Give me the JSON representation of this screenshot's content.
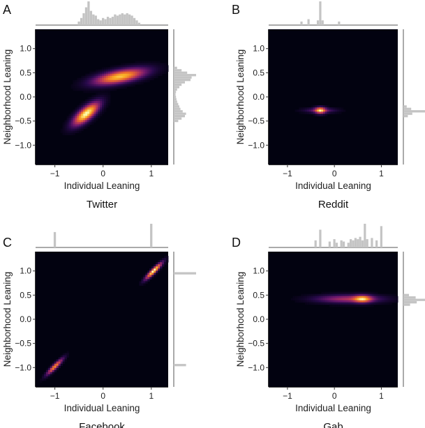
{
  "chart_data": [
    {
      "type": "heatmap",
      "panel_label": "A",
      "title": "Twitter",
      "xlabel": "Individual Leaning",
      "ylabel": "Neighborhood Leaning",
      "xlim": [
        -1.4,
        1.35
      ],
      "ylim": [
        -1.4,
        1.4
      ],
      "xticks": [
        -1,
        0,
        1
      ],
      "yticks": [
        1.0,
        0.5,
        0.0,
        -0.5,
        -1.0
      ],
      "density_peaks": [
        {
          "x": 0.35,
          "y": 0.42,
          "sx": 0.32,
          "sy": 0.1,
          "rho": 0.6,
          "weight": 1.0
        },
        {
          "x": -0.35,
          "y": -0.35,
          "sx": 0.16,
          "sy": 0.14,
          "rho": 0.75,
          "weight": 1.2
        }
      ],
      "x_marginal": {
        "bins": [
          -0.5,
          -0.45,
          -0.4,
          -0.35,
          -0.3,
          -0.25,
          -0.2,
          -0.15,
          -0.1,
          -0.05,
          0,
          0.05,
          0.1,
          0.15,
          0.2,
          0.25,
          0.3,
          0.35,
          0.4,
          0.45,
          0.5,
          0.55,
          0.6,
          0.65,
          0.7,
          0.75
        ],
        "heights": [
          0.15,
          0.3,
          0.5,
          0.75,
          1.0,
          0.6,
          0.45,
          0.4,
          0.25,
          0.2,
          0.3,
          0.25,
          0.35,
          0.3,
          0.35,
          0.45,
          0.4,
          0.45,
          0.5,
          0.45,
          0.5,
          0.45,
          0.4,
          0.3,
          0.2,
          0.1
        ]
      },
      "y_marginal": {
        "bins": [
          -0.5,
          -0.45,
          -0.4,
          -0.35,
          -0.3,
          -0.25,
          -0.2,
          -0.15,
          -0.1,
          -0.05,
          0.0,
          0.05,
          0.1,
          0.15,
          0.2,
          0.25,
          0.3,
          0.35,
          0.4,
          0.45,
          0.5,
          0.55,
          0.6
        ],
        "heights": [
          0.2,
          0.35,
          0.5,
          0.55,
          0.4,
          0.3,
          0.25,
          0.2,
          0.15,
          0.12,
          0.1,
          0.08,
          0.1,
          0.15,
          0.25,
          0.35,
          0.5,
          0.75,
          0.8,
          1.0,
          0.6,
          0.35,
          0.15
        ]
      }
    },
    {
      "type": "heatmap",
      "panel_label": "B",
      "title": "Reddit",
      "xlabel": "Individual Leaning",
      "ylabel": "Neighborhood Leaning",
      "xlim": [
        -1.4,
        1.35
      ],
      "ylim": [
        -1.4,
        1.4
      ],
      "xticks": [
        -1,
        0,
        1
      ],
      "yticks": [
        1.0,
        0.5,
        0.0,
        -0.5,
        -1.0
      ],
      "density_peaks": [
        {
          "x": -0.3,
          "y": -0.28,
          "sx": 0.07,
          "sy": 0.04,
          "rho": 0.0,
          "weight": 1.3
        },
        {
          "x": -0.3,
          "y": -0.28,
          "sx": 0.2,
          "sy": 0.03,
          "rho": 0.0,
          "weight": 0.35
        }
      ],
      "x_marginal": {
        "bins": [
          -0.7,
          -0.55,
          -0.35,
          -0.3,
          -0.25,
          0.1
        ],
        "heights": [
          0.15,
          0.25,
          0.2,
          1.0,
          0.2,
          0.15
        ]
      },
      "y_marginal": {
        "bins": [
          -0.4,
          -0.35,
          -0.3,
          -0.25,
          -0.2
        ],
        "heights": [
          0.2,
          0.4,
          1.0,
          0.35,
          0.15
        ]
      }
    },
    {
      "type": "heatmap",
      "panel_label": "C",
      "title": "Facebook",
      "xlabel": "Individual Leaning",
      "ylabel": "Neighborhood Leaning",
      "xlim": [
        -1.4,
        1.35
      ],
      "ylim": [
        -1.4,
        1.4
      ],
      "xticks": [
        -1,
        0,
        1
      ],
      "yticks": [
        1.0,
        0.5,
        0.0,
        -0.5,
        -1.0
      ],
      "density_peaks": [
        {
          "x": 1.05,
          "y": 1.0,
          "sx": 0.1,
          "sy": 0.1,
          "rho": 0.92,
          "weight": 1.1
        },
        {
          "x": -1.0,
          "y": -0.98,
          "sx": 0.1,
          "sy": 0.1,
          "rho": 0.92,
          "weight": 0.75
        }
      ],
      "x_marginal": {
        "bins": [
          -1.0,
          1.0
        ],
        "heights": [
          0.65,
          1.0
        ]
      },
      "y_marginal": {
        "bins": [
          -0.95,
          0.95
        ],
        "heights": [
          0.55,
          1.0
        ]
      }
    },
    {
      "type": "heatmap",
      "panel_label": "D",
      "title": "Gab",
      "xlabel": "Individual Leaning",
      "ylabel": "Neighborhood Leaning",
      "xlim": [
        -1.4,
        1.35
      ],
      "ylim": [
        -1.4,
        1.4
      ],
      "xticks": [
        -1,
        0,
        1
      ],
      "yticks": [
        1.0,
        0.5,
        0.0,
        -0.5,
        -1.0
      ],
      "density_peaks": [
        {
          "x": 0.6,
          "y": 0.42,
          "sx": 0.12,
          "sy": 0.045,
          "rho": 0.0,
          "weight": 1.2
        },
        {
          "x": 0.3,
          "y": 0.42,
          "sx": 0.42,
          "sy": 0.05,
          "rho": 0.0,
          "weight": 0.6
        }
      ],
      "x_marginal": {
        "bins": [
          -0.4,
          -0.3,
          -0.1,
          0.0,
          0.05,
          0.15,
          0.2,
          0.3,
          0.35,
          0.4,
          0.45,
          0.5,
          0.55,
          0.6,
          0.65,
          0.7,
          0.8,
          0.9,
          1.0
        ],
        "heights": [
          0.3,
          0.75,
          0.25,
          0.35,
          0.2,
          0.3,
          0.25,
          0.2,
          0.35,
          0.3,
          0.4,
          0.35,
          0.45,
          0.3,
          1.0,
          0.35,
          0.4,
          0.3,
          0.9
        ]
      },
      "y_marginal": {
        "bins": [
          0.3,
          0.35,
          0.4,
          0.45,
          0.5
        ],
        "heights": [
          0.3,
          0.6,
          1.0,
          0.55,
          0.25
        ]
      }
    }
  ]
}
